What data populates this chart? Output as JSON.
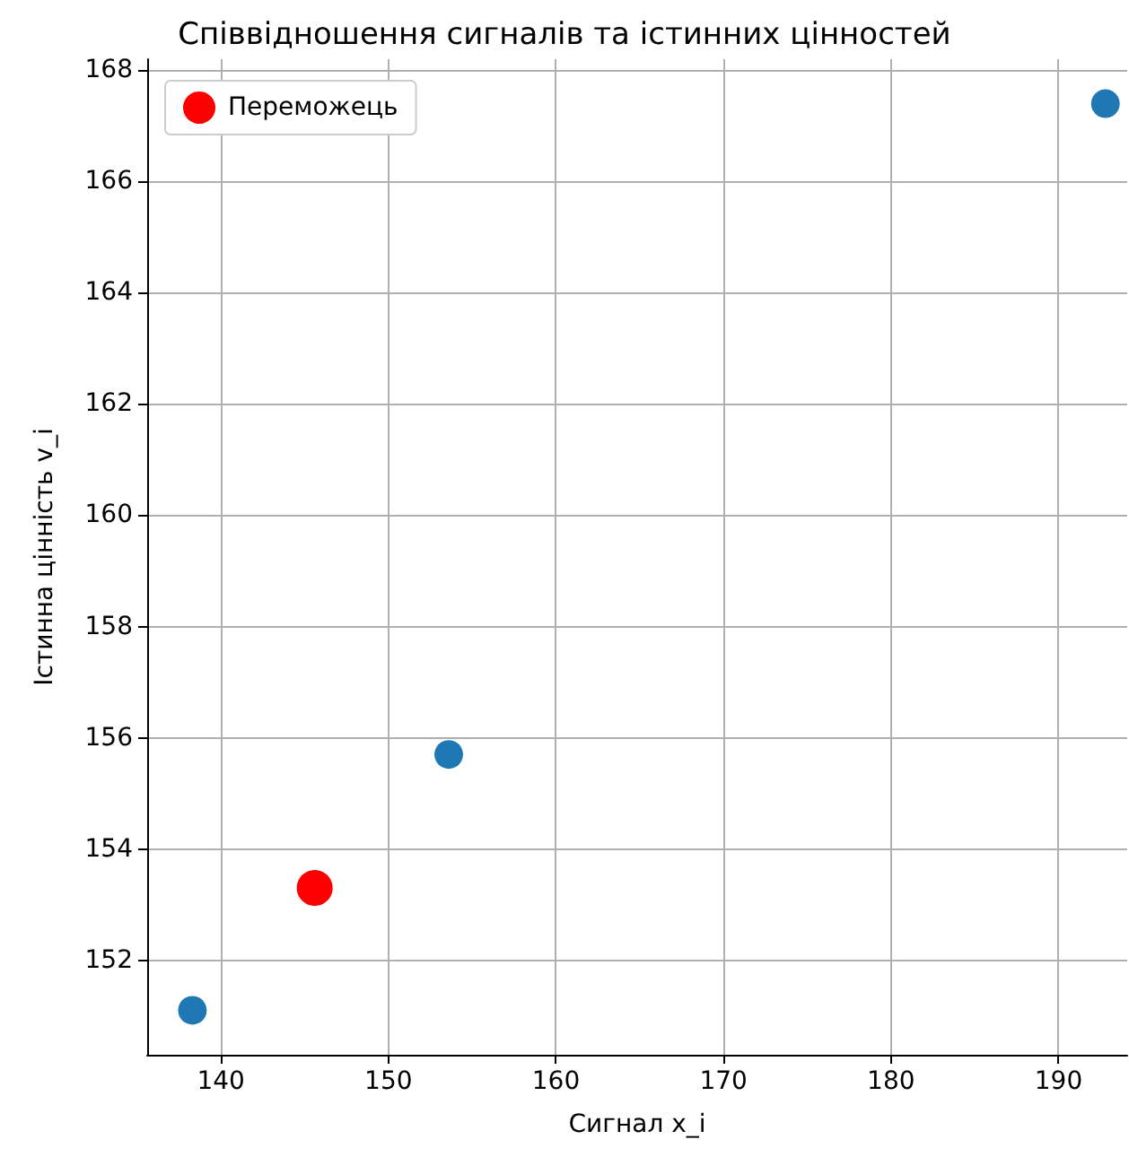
{
  "chart_data": {
    "type": "scatter",
    "title": "Співвідношення сигналів та істинних цінностей",
    "xlabel": "Сигнал x_i",
    "ylabel": "Істинна цінність v_i",
    "series": [
      {
        "color": "#1f77b4",
        "x": [
          138.3,
          153.6,
          192.8
        ],
        "values": [
          151.1,
          155.7,
          167.4
        ]
      },
      {
        "name": "Переможець",
        "color": "#ff0000",
        "x": [
          145.6
        ],
        "values": [
          153.3
        ]
      }
    ],
    "xlim": [
      135.6,
      194.1
    ],
    "xticks": [
      140,
      150,
      160,
      170,
      180,
      190
    ],
    "ylim": [
      150.3,
      168.2
    ],
    "yticks": [
      152,
      154,
      156,
      158,
      160,
      162,
      164,
      166,
      168
    ],
    "grid": true,
    "legend": "top left",
    "marker": "circle"
  }
}
